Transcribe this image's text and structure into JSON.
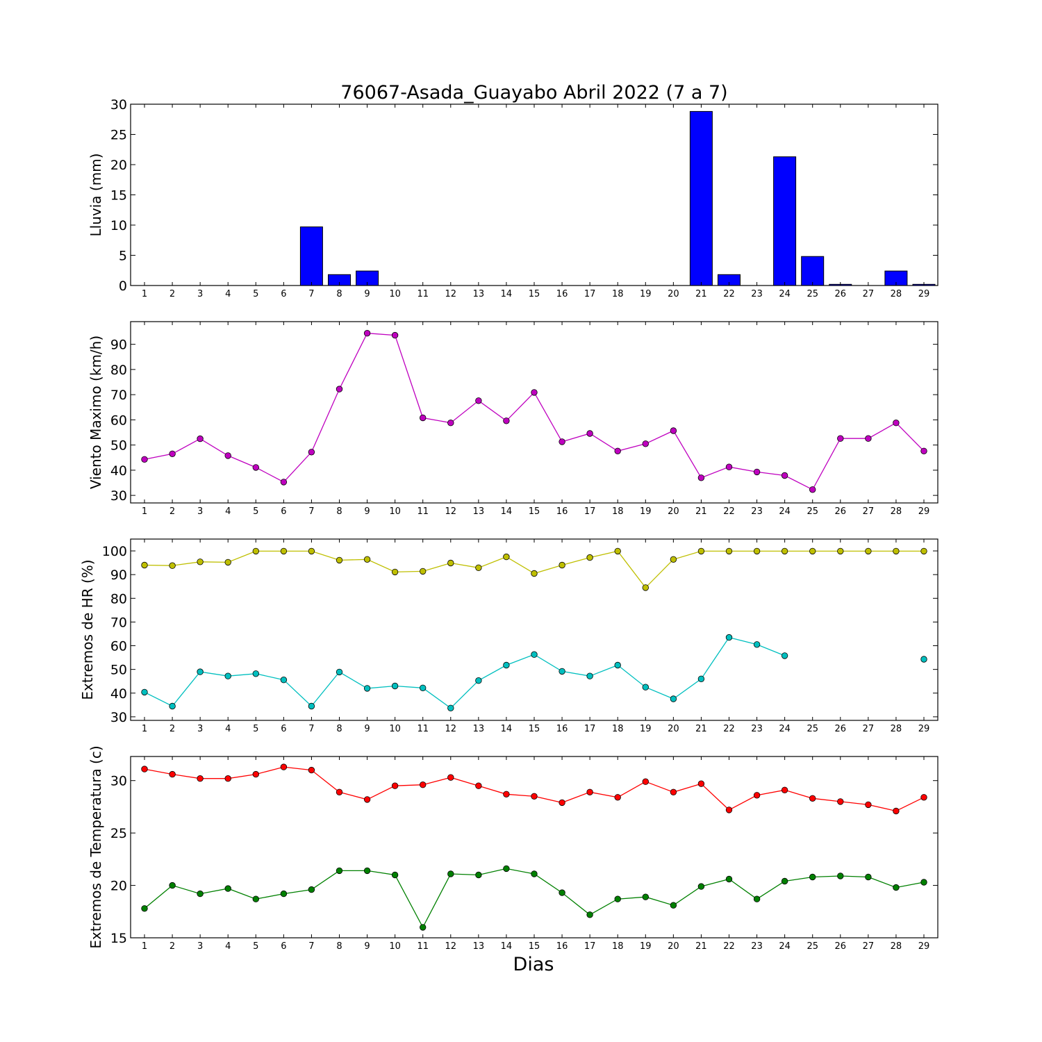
{
  "figure": {
    "title": "76067-Asada_Guayabo Abril 2022  (7 a 7)",
    "xlabel": "Dias"
  },
  "chart_data": [
    {
      "id": "rain",
      "type": "bar",
      "ylabel": "Lluvia (mm)",
      "ylim": [
        0,
        30
      ],
      "yticks": [
        0,
        5,
        10,
        15,
        20,
        25,
        30
      ],
      "categories": [
        "1",
        "2",
        "3",
        "4",
        "5",
        "6",
        "7",
        "8",
        "9",
        "10",
        "11",
        "12",
        "13",
        "14",
        "15",
        "16",
        "17",
        "18",
        "19",
        "20",
        "21",
        "22",
        "23",
        "24",
        "25",
        "26",
        "27",
        "28",
        "29"
      ],
      "series": [
        {
          "color": "#0000ff",
          "values": [
            0,
            0,
            0,
            0,
            0,
            0,
            9.7,
            1.8,
            2.4,
            0,
            0,
            0,
            0,
            0,
            0,
            0,
            0,
            0,
            0,
            0,
            28.8,
            1.8,
            0,
            21.3,
            4.8,
            0.2,
            0,
            2.4,
            0.2
          ]
        }
      ],
      "grid": false
    },
    {
      "id": "wind",
      "type": "line",
      "ylabel": "Viento Maximo (km/h)",
      "ylim": [
        27,
        99
      ],
      "yticks": [
        30,
        40,
        50,
        60,
        70,
        80,
        90
      ],
      "categories": [
        "1",
        "2",
        "3",
        "4",
        "5",
        "6",
        "7",
        "8",
        "9",
        "10",
        "11",
        "12",
        "13",
        "14",
        "15",
        "16",
        "17",
        "18",
        "19",
        "20",
        "21",
        "22",
        "23",
        "24",
        "25",
        "26",
        "27",
        "28",
        "29"
      ],
      "series": [
        {
          "color": "#bf00bf",
          "values": [
            44.3,
            46.5,
            52.5,
            45.8,
            41.1,
            35.3,
            47.2,
            72.2,
            94.4,
            93.6,
            60.8,
            58.8,
            67.6,
            59.6,
            70.9,
            51.3,
            54.6,
            47.6,
            50.5,
            55.7,
            37.0,
            41.3,
            39.3,
            37.9,
            32.3,
            52.6,
            52.6,
            58.8,
            47.6
          ]
        }
      ],
      "grid": false
    },
    {
      "id": "humidity",
      "type": "line",
      "ylabel": "Extremos de HR (%)",
      "ylim": [
        28.5,
        105
      ],
      "yticks": [
        30,
        40,
        50,
        60,
        70,
        80,
        90,
        100
      ],
      "categories": [
        "1",
        "2",
        "3",
        "4",
        "5",
        "6",
        "7",
        "8",
        "9",
        "10",
        "11",
        "12",
        "13",
        "14",
        "15",
        "16",
        "17",
        "18",
        "19",
        "20",
        "21",
        "22",
        "23",
        "24",
        "25",
        "26",
        "27",
        "28",
        "29"
      ],
      "series": [
        {
          "color": "#bfbf00",
          "values": [
            94.0,
            93.8,
            95.4,
            95.2,
            99.9,
            99.9,
            99.9,
            96.1,
            96.4,
            91.1,
            91.4,
            94.9,
            92.9,
            97.5,
            90.5,
            94.0,
            97.2,
            99.9,
            84.5,
            96.4,
            99.9,
            99.9,
            99.9,
            99.9,
            99.9,
            99.9,
            99.9,
            99.9,
            99.9
          ]
        },
        {
          "color": "#00bfbf",
          "values": [
            40.4,
            34.5,
            49.0,
            47.2,
            48.2,
            45.6,
            34.5,
            48.9,
            42.0,
            43.0,
            42.2,
            33.7,
            45.3,
            51.8,
            56.3,
            49.2,
            47.2,
            51.8,
            42.5,
            37.6,
            46.0,
            63.5,
            60.5,
            55.8,
            null,
            null,
            null,
            null,
            54.3
          ]
        }
      ],
      "grid": false
    },
    {
      "id": "temperature",
      "type": "line",
      "ylabel": "Extremos de Temperatura (c)",
      "ylim": [
        15,
        32.3
      ],
      "yticks": [
        15,
        20,
        25,
        30
      ],
      "categories": [
        "1",
        "2",
        "3",
        "4",
        "5",
        "6",
        "7",
        "8",
        "9",
        "10",
        "11",
        "12",
        "13",
        "14",
        "15",
        "16",
        "17",
        "18",
        "19",
        "20",
        "21",
        "22",
        "23",
        "24",
        "25",
        "26",
        "27",
        "28",
        "29"
      ],
      "series": [
        {
          "color": "#ff0000",
          "values": [
            31.1,
            30.6,
            30.2,
            30.2,
            30.6,
            31.3,
            31.0,
            28.9,
            28.2,
            29.5,
            29.6,
            30.3,
            29.5,
            28.7,
            28.5,
            27.9,
            28.9,
            28.4,
            29.9,
            28.9,
            29.7,
            27.2,
            28.6,
            29.1,
            28.3,
            28.0,
            27.7,
            27.1,
            28.4
          ]
        },
        {
          "color": "#008000",
          "values": [
            17.8,
            20.0,
            19.2,
            19.7,
            18.7,
            19.2,
            19.6,
            21.4,
            21.4,
            21.0,
            16.0,
            21.1,
            21.0,
            21.6,
            21.1,
            19.3,
            17.2,
            18.7,
            18.9,
            18.1,
            19.9,
            20.6,
            18.7,
            20.4,
            20.8,
            20.9,
            20.8,
            19.8,
            20.3
          ]
        }
      ],
      "grid": false
    }
  ]
}
